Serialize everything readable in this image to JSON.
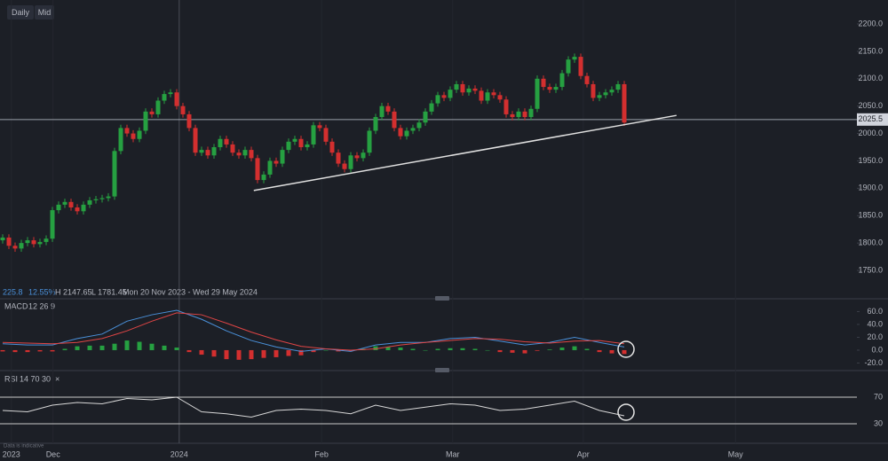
{
  "ui": {
    "toolbar": [
      "Daily",
      "Mid"
    ],
    "info": {
      "change": "225.8",
      "change_pct": "12.55%",
      "high": "H 2147.65",
      "low": "L 1781.45",
      "range": "Mon 20 Nov 2023 - Wed 29 May 2024"
    },
    "footnote": "Data is indicative"
  },
  "chart_data": {
    "type": "candlestick",
    "up_color": "#26a041",
    "down_color": "#d32f2f",
    "xlim": [
      -0.43,
      137.43
    ],
    "xticks": [
      {
        "value": 1.4,
        "label": "2023"
      },
      {
        "value": 8.1,
        "label": "Dec"
      },
      {
        "value": 28.4,
        "label": "2024"
      },
      {
        "value": 51.3,
        "label": "Feb"
      },
      {
        "value": 72.4,
        "label": "Mar"
      },
      {
        "value": 93.4,
        "label": "Apr"
      },
      {
        "value": 117.9,
        "label": "May"
      }
    ],
    "ylim": [
      1701.5,
      2243.7
    ],
    "yticks": [
      {
        "value": 1750,
        "label": "1750.0"
      },
      {
        "value": 1800,
        "label": "1800.0"
      },
      {
        "value": 1850,
        "label": "1850.0"
      },
      {
        "value": 1900,
        "label": "1900.0"
      },
      {
        "value": 1950,
        "label": "1950.0"
      },
      {
        "value": 2000,
        "label": "2000.0"
      },
      {
        "value": 2050,
        "label": "2050.0"
      },
      {
        "value": 2100,
        "label": "2100.0"
      },
      {
        "value": 2150,
        "label": "2150.0"
      },
      {
        "value": 2200,
        "label": "2200.0"
      }
    ],
    "last_price": {
      "value": 2025.5,
      "label": "2025.5"
    },
    "trendline": {
      "x": [
        40.4,
        108.4
      ],
      "y": [
        1896,
        2033
      ]
    },
    "ohlc": [
      [
        1805,
        1816,
        1799,
        1810
      ],
      [
        1810,
        1816,
        1789,
        1795
      ],
      [
        1795,
        1801,
        1784,
        1790
      ],
      [
        1790,
        1806,
        1784,
        1800
      ],
      [
        1800,
        1811,
        1794,
        1805
      ],
      [
        1805,
        1811,
        1792,
        1798
      ],
      [
        1798,
        1808,
        1792,
        1802
      ],
      [
        1802,
        1814,
        1796,
        1808
      ],
      [
        1808,
        1866,
        1802,
        1860
      ],
      [
        1860,
        1876,
        1854,
        1870
      ],
      [
        1870,
        1881,
        1864,
        1875
      ],
      [
        1875,
        1881,
        1859,
        1865
      ],
      [
        1865,
        1871,
        1852,
        1858
      ],
      [
        1858,
        1876,
        1852,
        1870
      ],
      [
        1870,
        1884,
        1864,
        1878
      ],
      [
        1878,
        1886,
        1872,
        1880
      ],
      [
        1880,
        1888,
        1874,
        1882
      ],
      [
        1882,
        1891,
        1876,
        1885
      ],
      [
        1885,
        1974,
        1879,
        1968
      ],
      [
        1968,
        2016,
        1962,
        2010
      ],
      [
        2010,
        2016,
        1994,
        2000
      ],
      [
        2000,
        2006,
        1984,
        1990
      ],
      [
        1990,
        2011,
        1984,
        2005
      ],
      [
        2005,
        2046,
        1999,
        2040
      ],
      [
        2040,
        2046,
        2029,
        2035
      ],
      [
        2035,
        2066,
        2029,
        2060
      ],
      [
        2060,
        2078,
        2054,
        2072
      ],
      [
        2072,
        2081,
        2066,
        2075
      ],
      [
        2075,
        2081,
        2044,
        2050
      ],
      [
        2050,
        2056,
        2029,
        2035
      ],
      [
        2035,
        2041,
        2004,
        2010
      ],
      [
        2010,
        2016,
        1959,
        1965
      ],
      [
        1965,
        1976,
        1959,
        1970
      ],
      [
        1970,
        1976,
        1954,
        1960
      ],
      [
        1960,
        1981,
        1954,
        1975
      ],
      [
        1975,
        1996,
        1969,
        1990
      ],
      [
        1990,
        1996,
        1974,
        1980
      ],
      [
        1980,
        1986,
        1959,
        1965
      ],
      [
        1965,
        1971,
        1954,
        1960
      ],
      [
        1960,
        1976,
        1954,
        1970
      ],
      [
        1970,
        1976,
        1949,
        1955
      ],
      [
        1955,
        1961,
        1909,
        1915
      ],
      [
        1915,
        1931,
        1909,
        1925
      ],
      [
        1925,
        1956,
        1919,
        1950
      ],
      [
        1950,
        1956,
        1939,
        1945
      ],
      [
        1945,
        1976,
        1939,
        1970
      ],
      [
        1970,
        1991,
        1964,
        1985
      ],
      [
        1985,
        1996,
        1979,
        1990
      ],
      [
        1990,
        1996,
        1969,
        1975
      ],
      [
        1975,
        1986,
        1969,
        1980
      ],
      [
        1980,
        2021,
        1974,
        2015
      ],
      [
        2015,
        2021,
        2004,
        2010
      ],
      [
        2010,
        2016,
        1979,
        1985
      ],
      [
        1985,
        1991,
        1959,
        1965
      ],
      [
        1965,
        1971,
        1939,
        1945
      ],
      [
        1945,
        1951,
        1929,
        1935
      ],
      [
        1935,
        1966,
        1929,
        1960
      ],
      [
        1960,
        1966,
        1949,
        1955
      ],
      [
        1955,
        1971,
        1949,
        1965
      ],
      [
        1965,
        2011,
        1959,
        2005
      ],
      [
        2005,
        2036,
        1999,
        2030
      ],
      [
        2030,
        2056,
        2024,
        2050
      ],
      [
        2050,
        2056,
        2034,
        2040
      ],
      [
        2040,
        2046,
        2004,
        2010
      ],
      [
        2010,
        2016,
        1989,
        1995
      ],
      [
        1995,
        2011,
        1989,
        2005
      ],
      [
        2005,
        2016,
        1999,
        2010
      ],
      [
        2010,
        2026,
        2004,
        2020
      ],
      [
        2020,
        2046,
        2014,
        2040
      ],
      [
        2040,
        2061,
        2034,
        2055
      ],
      [
        2055,
        2076,
        2049,
        2070
      ],
      [
        2070,
        2076,
        2059,
        2065
      ],
      [
        2065,
        2086,
        2059,
        2080
      ],
      [
        2080,
        2096,
        2074,
        2090
      ],
      [
        2090,
        2096,
        2069,
        2075
      ],
      [
        2075,
        2088,
        2069,
        2082
      ],
      [
        2082,
        2088,
        2072,
        2078
      ],
      [
        2078,
        2084,
        2054,
        2060
      ],
      [
        2060,
        2081,
        2054,
        2075
      ],
      [
        2075,
        2081,
        2064,
        2070
      ],
      [
        2070,
        2076,
        2056,
        2062
      ],
      [
        2062,
        2068,
        2029,
        2035
      ],
      [
        2035,
        2041,
        2024,
        2030
      ],
      [
        2030,
        2046,
        2024,
        2040
      ],
      [
        2040,
        2046,
        2024,
        2030
      ],
      [
        2030,
        2051,
        2024,
        2045
      ],
      [
        2045,
        2106,
        2039,
        2100
      ],
      [
        2100,
        2106,
        2079,
        2085
      ],
      [
        2085,
        2091,
        2074,
        2080
      ],
      [
        2080,
        2091,
        2074,
        2085
      ],
      [
        2085,
        2116,
        2079,
        2110
      ],
      [
        2110,
        2141,
        2104,
        2135
      ],
      [
        2135,
        2146,
        2129,
        2140
      ],
      [
        2140,
        2146,
        2099,
        2105
      ],
      [
        2105,
        2111,
        2084,
        2090
      ],
      [
        2090,
        2096,
        2059,
        2065
      ],
      [
        2065,
        2076,
        2059,
        2070
      ],
      [
        2070,
        2081,
        2064,
        2075
      ],
      [
        2075,
        2086,
        2069,
        2080
      ],
      [
        2080,
        2096,
        2074,
        2090
      ],
      [
        2090,
        2096,
        2014,
        2020
      ]
    ],
    "macd": {
      "label": "MACD",
      "params": "12 26 9",
      "ylim": [
        -29,
        73
      ],
      "yticks": [
        {
          "value": 60,
          "label": "60.0"
        },
        {
          "value": 40,
          "label": "40.0"
        },
        {
          "value": 20,
          "label": "20.0"
        },
        {
          "value": 0,
          "label": "0.0"
        },
        {
          "value": -20,
          "label": "-20.0"
        }
      ],
      "x": [
        0,
        4,
        8,
        12,
        16,
        20,
        24,
        28,
        32,
        36,
        40,
        44,
        48,
        52,
        56,
        60,
        64,
        68,
        72,
        76,
        80,
        84,
        88,
        92,
        96,
        100
      ],
      "series": [
        {
          "color": "#4a90d9",
          "values": [
            10,
            8,
            8,
            18,
            25,
            45,
            55,
            62,
            48,
            30,
            15,
            5,
            -2,
            2,
            -2,
            8,
            12,
            12,
            18,
            20,
            14,
            8,
            12,
            20,
            12,
            5
          ]
        },
        {
          "color": "#e04545",
          "values": [
            12,
            11,
            10,
            12,
            18,
            30,
            45,
            58,
            55,
            42,
            28,
            16,
            6,
            2,
            0,
            2,
            8,
            12,
            15,
            18,
            17,
            13,
            11,
            14,
            15,
            10
          ]
        }
      ],
      "histogram": {
        "x": [
          0,
          2,
          4,
          6,
          8,
          10,
          12,
          14,
          16,
          18,
          20,
          22,
          24,
          26,
          28,
          30,
          32,
          34,
          36,
          38,
          40,
          42,
          44,
          46,
          48,
          50,
          52,
          54,
          56,
          58,
          60,
          62,
          64,
          66,
          68,
          70,
          72,
          74,
          76,
          78,
          80,
          82,
          84,
          86,
          88,
          90,
          92,
          94,
          96,
          98,
          100
        ],
        "values": [
          -2,
          -3,
          -3,
          -2,
          -2,
          2,
          6,
          7,
          7,
          10,
          15,
          13,
          10,
          7,
          4,
          -3,
          -7,
          -10,
          -14,
          -15,
          -14,
          -12,
          -11,
          -9,
          -8,
          -3,
          0,
          -2,
          -2,
          2,
          6,
          5,
          4,
          2,
          0,
          2,
          3,
          3,
          2,
          0,
          -3,
          -4,
          -5,
          -1,
          1,
          4,
          6,
          2,
          -3,
          -5,
          -6
        ]
      }
    },
    "rsi": {
      "label": "RSI",
      "params": "14 70 30",
      "ylim": [
        4.7,
        107.3
      ],
      "yticks": [
        70,
        30
      ],
      "color": "#d8d8d8",
      "x": [
        0,
        4,
        8,
        12,
        16,
        20,
        24,
        28,
        32,
        36,
        40,
        44,
        48,
        52,
        56,
        60,
        64,
        68,
        72,
        76,
        80,
        84,
        88,
        92,
        96,
        100
      ],
      "values": [
        50,
        48,
        58,
        62,
        60,
        68,
        66,
        70,
        48,
        45,
        40,
        50,
        52,
        50,
        45,
        58,
        50,
        55,
        60,
        58,
        50,
        52,
        58,
        64,
        50,
        42
      ]
    }
  }
}
